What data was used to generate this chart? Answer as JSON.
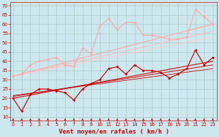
{
  "background_color": "#cce8ee",
  "grid_color": "#aaccc8",
  "xlabel": "Vent moyen/en rafales ( km/h )",
  "xlabel_color": "#cc0000",
  "xlabel_fontsize": 6.5,
  "tick_color": "#cc0000",
  "tick_fontsize": 5.0,
  "ylim": [
    8,
    72
  ],
  "yticks": [
    10,
    15,
    20,
    25,
    30,
    35,
    40,
    45,
    50,
    55,
    60,
    65,
    70
  ],
  "xlim": [
    -0.3,
    23.5
  ],
  "xticks": [
    0,
    1,
    2,
    3,
    4,
    5,
    6,
    7,
    8,
    9,
    10,
    11,
    12,
    13,
    14,
    15,
    16,
    17,
    18,
    19,
    20,
    21,
    22,
    23
  ],
  "series": [
    {
      "name": "moyen_marker",
      "x": [
        0,
        1,
        2,
        3,
        4,
        5,
        6,
        7,
        8,
        9,
        10,
        11,
        12,
        13,
        14,
        15,
        16,
        17,
        18,
        19,
        20,
        21,
        22,
        23
      ],
      "y": [
        20,
        13,
        22,
        25,
        25,
        24,
        23,
        19,
        25,
        28,
        30,
        36,
        37,
        33,
        38,
        35,
        35,
        34,
        31,
        33,
        36,
        46,
        38,
        42
      ],
      "color": "#cc0000",
      "lw": 0.9,
      "marker": "D",
      "markersize": 1.8,
      "linestyle": "-",
      "zorder": 5
    },
    {
      "name": "moyen_trend1",
      "x": [
        0,
        23
      ],
      "y": [
        20,
        40
      ],
      "color": "#cc0000",
      "lw": 0.8,
      "marker": null,
      "linestyle": "-",
      "zorder": 3
    },
    {
      "name": "moyen_trend2",
      "x": [
        0,
        23
      ],
      "y": [
        21,
        38
      ],
      "color": "#cc0000",
      "lw": 0.7,
      "marker": null,
      "linestyle": "-",
      "zorder": 3
    },
    {
      "name": "moyen_trend3",
      "x": [
        0,
        23
      ],
      "y": [
        21.5,
        36
      ],
      "color": "#cc0000",
      "lw": 0.6,
      "marker": null,
      "linestyle": "-",
      "zorder": 3
    },
    {
      "name": "rafales_marker",
      "x": [
        0,
        1,
        2,
        3,
        4,
        5,
        6,
        7,
        8,
        9,
        10,
        11,
        12,
        13,
        14,
        15,
        16,
        17,
        18,
        19,
        20,
        21,
        22,
        23
      ],
      "y": [
        32,
        33,
        38,
        40,
        41,
        42,
        38,
        37,
        47,
        44,
        59,
        63,
        57,
        61,
        61,
        54,
        54,
        53,
        52,
        52,
        53,
        68,
        64,
        60
      ],
      "color": "#ffaaaa",
      "lw": 0.9,
      "marker": "D",
      "markersize": 1.8,
      "linestyle": "-",
      "zorder": 5
    },
    {
      "name": "rafales_trend1",
      "x": [
        0,
        23
      ],
      "y": [
        32,
        60
      ],
      "color": "#ffaaaa",
      "lw": 0.9,
      "marker": null,
      "linestyle": "-",
      "zorder": 3
    },
    {
      "name": "rafales_trend2",
      "x": [
        0,
        23
      ],
      "y": [
        32,
        56
      ],
      "color": "#ffbbbb",
      "lw": 0.8,
      "marker": null,
      "linestyle": "-",
      "zorder": 3
    },
    {
      "name": "rafales_trend3",
      "x": [
        0,
        23
      ],
      "y": [
        32,
        53
      ],
      "color": "#ffcccc",
      "lw": 0.7,
      "marker": null,
      "linestyle": "-",
      "zorder": 3
    }
  ],
  "arrow_color": "#cc0000"
}
